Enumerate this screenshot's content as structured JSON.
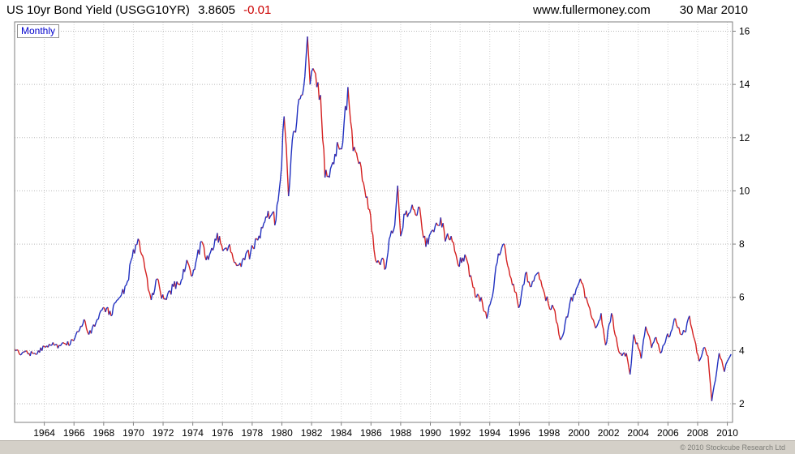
{
  "header": {
    "title": "US 10yr Bond Yield (USGG10YR)",
    "last_value": "3.8605",
    "change": "-0.01",
    "website": "www.fullermoney.com",
    "date": "30 Mar 2010"
  },
  "chart": {
    "timeframe_label": "Monthly",
    "copyright": "© 2010 Stockcube Research Ltd"
  },
  "colors": {
    "up": "#2030c0",
    "down": "#d42020",
    "grid_h": "#b8b8b8",
    "grid_v": "#d2d2d2",
    "frame": "#7f7f7f",
    "change_negative": "#cc0000",
    "timeframe_text": "#0000cc"
  },
  "chart_data": {
    "type": "line",
    "title": "US 10yr Bond Yield (USGG10YR)",
    "subtitle": "Monthly",
    "xlabel": "",
    "ylabel": "",
    "legend_position": "none",
    "grid": "dotted",
    "ylim": [
      1.3,
      16.35
    ],
    "yticks": [
      2,
      4,
      6,
      8,
      10,
      12,
      14,
      16
    ],
    "xlim": [
      1962.0,
      2010.35
    ],
    "xticks": [
      1964,
      1966,
      1968,
      1970,
      1972,
      1974,
      1976,
      1978,
      1980,
      1982,
      1984,
      1986,
      1988,
      1990,
      1992,
      1994,
      1996,
      1998,
      2000,
      2002,
      2004,
      2006,
      2008,
      2010
    ],
    "series": [
      {
        "name": "US 10yr Bond Yield monthly (blue = rising month, red = falling month)",
        "x": [
          1962.0,
          1962.3,
          1962.6,
          1962.9,
          1963.2,
          1963.6,
          1964.0,
          1964.5,
          1965.0,
          1965.5,
          1965.9,
          1966.3,
          1966.6,
          1966.75,
          1967.0,
          1967.4,
          1967.8,
          1968.2,
          1968.5,
          1968.8,
          1969.2,
          1969.6,
          1970.0,
          1970.4,
          1970.7,
          1971.0,
          1971.2,
          1971.6,
          1971.9,
          1972.3,
          1972.7,
          1973.0,
          1973.3,
          1973.6,
          1973.9,
          1974.2,
          1974.6,
          1974.9,
          1975.2,
          1975.5,
          1975.8,
          1976.1,
          1976.4,
          1976.8,
          1977.1,
          1977.5,
          1977.9,
          1978.3,
          1978.7,
          1979.0,
          1979.3,
          1979.6,
          1979.9,
          1980.15,
          1980.45,
          1980.7,
          1981.0,
          1981.3,
          1981.55,
          1981.72,
          1981.9,
          1982.1,
          1982.35,
          1982.6,
          1982.9,
          1983.2,
          1983.5,
          1983.8,
          1984.1,
          1984.45,
          1984.8,
          1985.1,
          1985.5,
          1985.9,
          1986.2,
          1986.4,
          1986.7,
          1987.0,
          1987.3,
          1987.6,
          1987.8,
          1988.0,
          1988.3,
          1988.7,
          1989.0,
          1989.2,
          1989.7,
          1990.0,
          1990.4,
          1990.7,
          1991.0,
          1991.4,
          1991.8,
          1992.1,
          1992.4,
          1992.8,
          1993.1,
          1993.5,
          1993.8,
          1994.1,
          1994.5,
          1994.9,
          1995.2,
          1995.6,
          1995.95,
          1996.4,
          1996.8,
          1997.2,
          1997.6,
          1997.95,
          1998.3,
          1998.75,
          1999.0,
          1999.4,
          1999.9,
          2000.1,
          2000.5,
          2000.9,
          2001.2,
          2001.5,
          2001.8,
          2002.2,
          2002.6,
          2002.9,
          2003.2,
          2003.45,
          2003.7,
          2004.0,
          2004.2,
          2004.5,
          2004.9,
          2005.2,
          2005.5,
          2005.9,
          2006.2,
          2006.5,
          2006.9,
          2007.2,
          2007.45,
          2007.8,
          2008.1,
          2008.4,
          2008.7,
          2008.95,
          2009.2,
          2009.45,
          2009.8,
          2010.0,
          2010.25
        ],
        "y": [
          4.05,
          3.9,
          3.95,
          3.87,
          3.9,
          4.0,
          4.15,
          4.2,
          4.2,
          4.2,
          4.4,
          4.7,
          5.0,
          5.1,
          4.6,
          4.9,
          5.5,
          5.6,
          5.3,
          5.8,
          6.1,
          6.6,
          7.8,
          8.1,
          7.4,
          6.3,
          5.9,
          6.7,
          5.95,
          6.1,
          6.4,
          6.5,
          6.7,
          7.4,
          6.8,
          7.3,
          8.1,
          7.4,
          7.7,
          8.2,
          8.3,
          7.8,
          7.9,
          7.3,
          7.2,
          7.4,
          7.7,
          8.2,
          8.6,
          9.0,
          9.1,
          8.9,
          10.4,
          12.8,
          9.8,
          11.9,
          12.6,
          13.6,
          14.3,
          15.8,
          14.0,
          14.6,
          13.9,
          13.6,
          10.5,
          10.5,
          11.0,
          11.7,
          11.8,
          13.9,
          11.5,
          11.2,
          10.3,
          9.3,
          7.8,
          7.3,
          7.4,
          7.1,
          8.3,
          8.7,
          10.2,
          8.3,
          9.1,
          9.3,
          9.1,
          9.4,
          7.9,
          8.4,
          8.8,
          9.0,
          8.1,
          8.3,
          7.4,
          7.3,
          7.5,
          6.6,
          6.0,
          5.8,
          5.2,
          5.9,
          7.3,
          8.0,
          7.2,
          6.5,
          5.6,
          6.9,
          6.4,
          6.9,
          6.3,
          5.75,
          5.6,
          4.4,
          4.7,
          5.8,
          6.4,
          6.7,
          6.0,
          5.2,
          4.9,
          5.4,
          4.2,
          5.4,
          4.2,
          3.8,
          3.9,
          3.1,
          4.6,
          4.1,
          3.7,
          4.9,
          4.1,
          4.5,
          3.9,
          4.5,
          4.7,
          5.2,
          4.6,
          4.7,
          5.3,
          4.4,
          3.6,
          4.1,
          3.8,
          2.1,
          2.9,
          3.9,
          3.2,
          3.6,
          3.86
        ]
      }
    ]
  }
}
